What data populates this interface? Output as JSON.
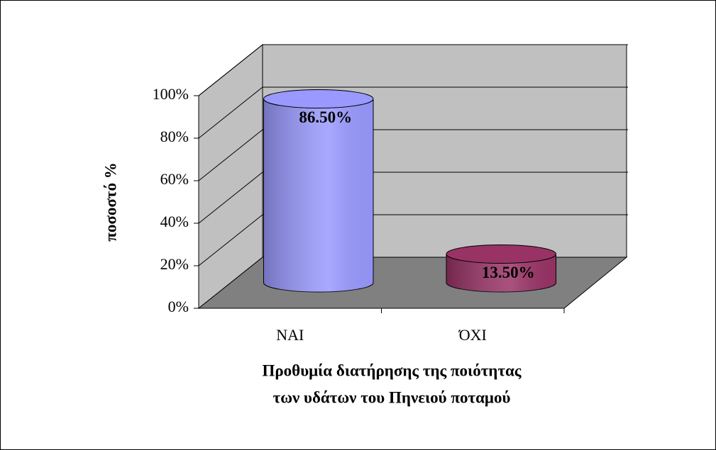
{
  "chart_data": {
    "type": "bar3d-cylinder",
    "categories": [
      "ΝΑΙ",
      "ΌΧΙ"
    ],
    "values": [
      86.5,
      13.5
    ],
    "value_labels": [
      "86.50%",
      "13.50%"
    ],
    "colors": [
      "#9999ff",
      "#993366"
    ],
    "ylim": [
      0,
      100
    ],
    "yticks": [
      {
        "value": 0,
        "label": "0%"
      },
      {
        "value": 20,
        "label": "20%"
      },
      {
        "value": 40,
        "label": "40%"
      },
      {
        "value": 60,
        "label": "60%"
      },
      {
        "value": 80,
        "label": "80%"
      },
      {
        "value": 100,
        "label": "100%"
      }
    ],
    "ylabel": "ποσοστό %",
    "xlabel": [
      "Προθυμία διατήρησης της ποιότητας",
      "των υδάτων του Πηνειού ποταμού"
    ],
    "grid": true
  }
}
